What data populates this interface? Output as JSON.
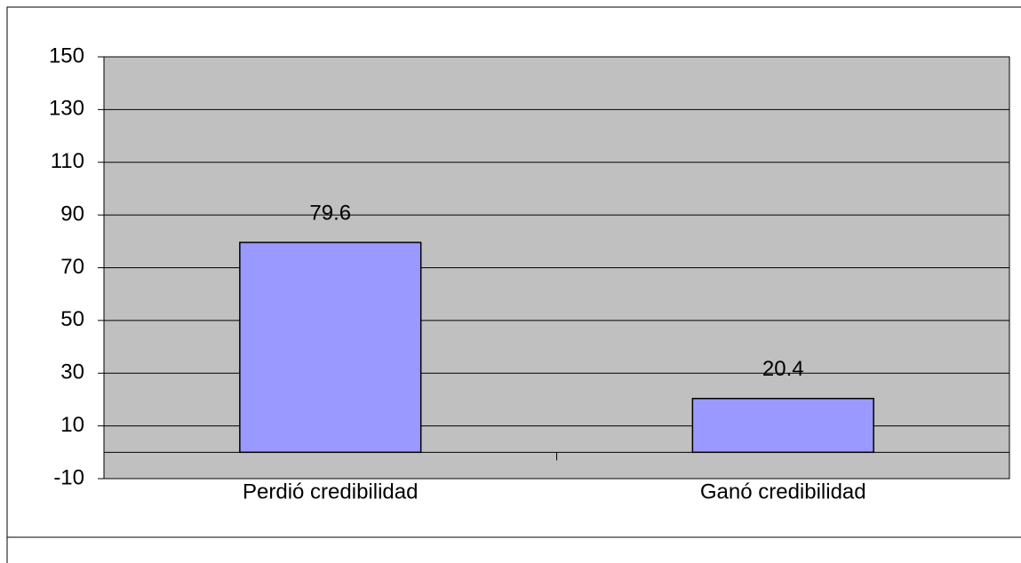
{
  "chart_data": {
    "type": "bar",
    "categories": [
      "Perdió credibilidad",
      "Ganó credibilidad"
    ],
    "values": [
      79.6,
      20.4
    ],
    "color": "#9999ff",
    "ylim": [
      -10,
      150
    ],
    "yticks": [
      -10,
      10,
      30,
      50,
      70,
      90,
      110,
      130,
      150
    ],
    "grid": true
  }
}
